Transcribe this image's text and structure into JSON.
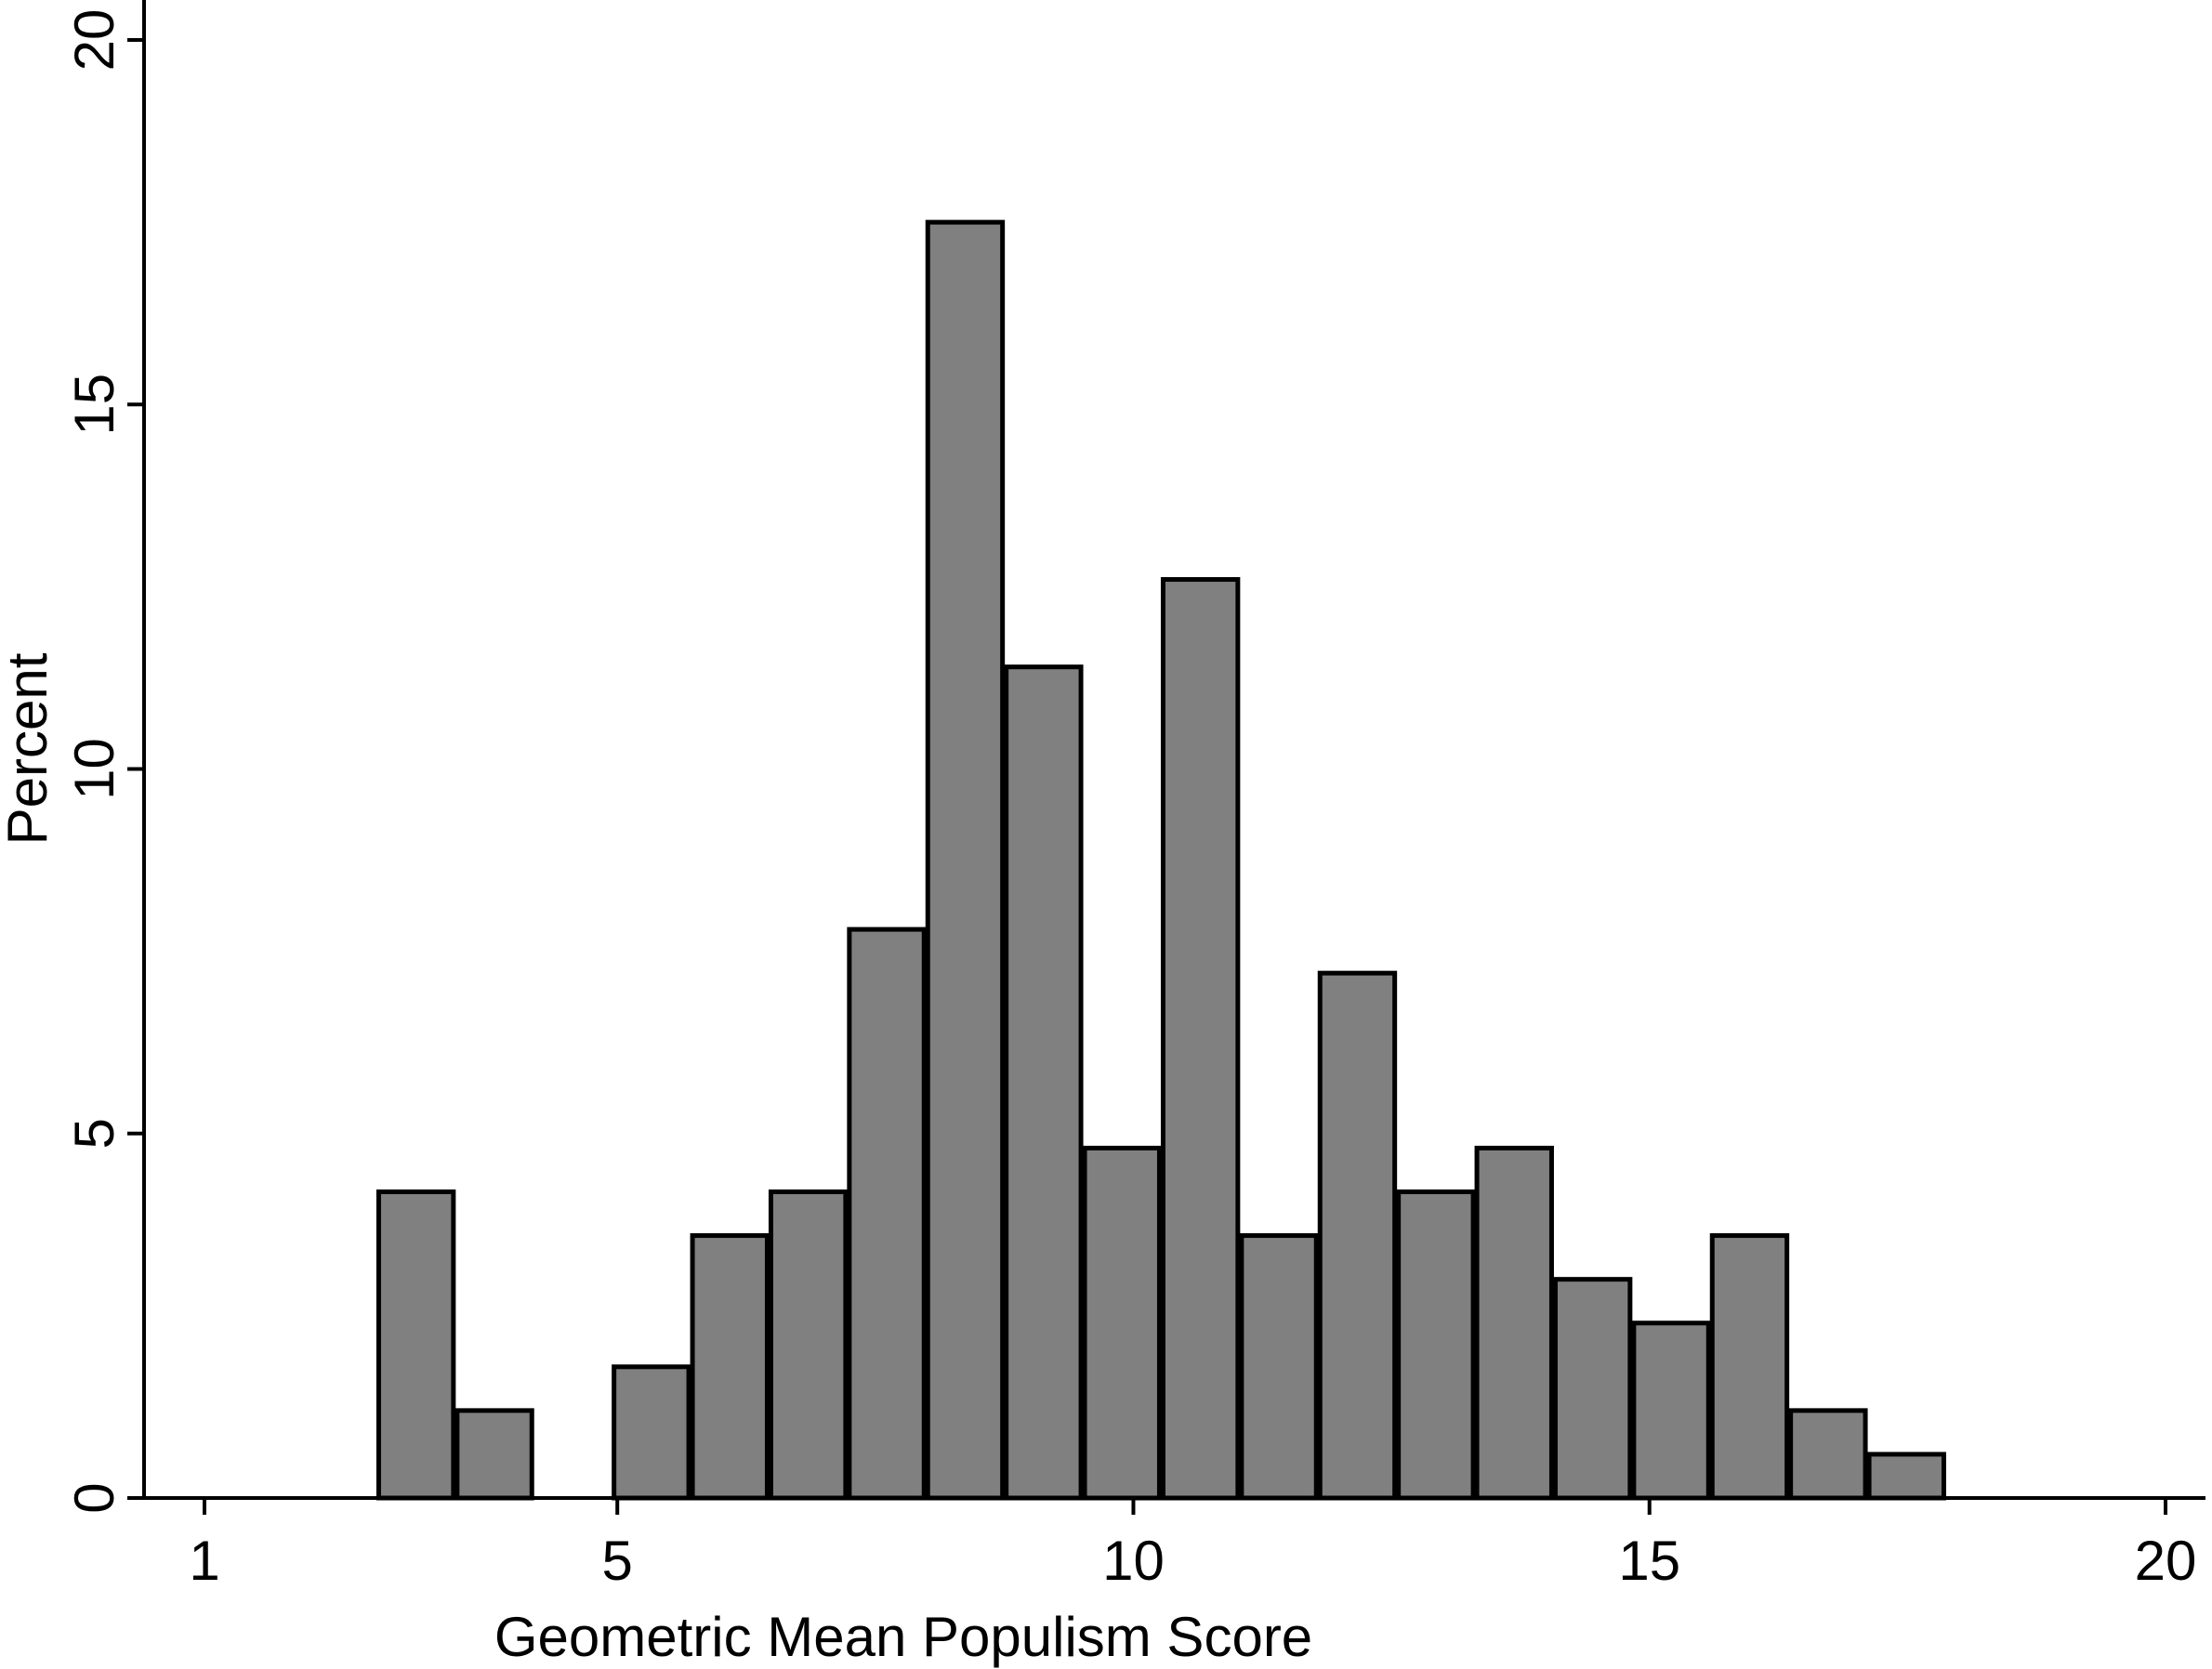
{
  "chart_data": {
    "type": "bar",
    "title": "",
    "xlabel": "Geometric Mean Populism Score",
    "ylabel": "Percent",
    "xlim": [
      1,
      20
    ],
    "ylim": [
      0,
      20
    ],
    "xticks": [
      1,
      5,
      10,
      15,
      20
    ],
    "yticks": [
      0,
      5,
      10,
      15,
      20
    ],
    "grid": false,
    "bar_color": "#808080",
    "bar_edge_color": "#000000",
    "bins": [
      {
        "start": 2.67,
        "end": 3.43,
        "value": 4.2
      },
      {
        "start": 3.43,
        "end": 4.19,
        "value": 1.2
      },
      {
        "start": 4.95,
        "end": 5.71,
        "value": 1.8
      },
      {
        "start": 5.71,
        "end": 6.47,
        "value": 3.6
      },
      {
        "start": 6.47,
        "end": 7.23,
        "value": 4.2
      },
      {
        "start": 7.23,
        "end": 7.99,
        "value": 7.8
      },
      {
        "start": 7.99,
        "end": 8.75,
        "value": 17.5
      },
      {
        "start": 8.75,
        "end": 9.51,
        "value": 11.4
      },
      {
        "start": 9.51,
        "end": 10.27,
        "value": 4.8
      },
      {
        "start": 10.27,
        "end": 11.03,
        "value": 12.6
      },
      {
        "start": 11.03,
        "end": 11.79,
        "value": 3.6
      },
      {
        "start": 11.79,
        "end": 12.55,
        "value": 7.2
      },
      {
        "start": 12.55,
        "end": 13.31,
        "value": 4.2
      },
      {
        "start": 13.31,
        "end": 14.07,
        "value": 4.8
      },
      {
        "start": 14.07,
        "end": 14.83,
        "value": 3.0
      },
      {
        "start": 14.83,
        "end": 15.59,
        "value": 2.4
      },
      {
        "start": 15.59,
        "end": 16.35,
        "value": 3.6
      },
      {
        "start": 16.35,
        "end": 17.11,
        "value": 1.2
      },
      {
        "start": 17.11,
        "end": 17.87,
        "value": 0.6
      }
    ]
  }
}
